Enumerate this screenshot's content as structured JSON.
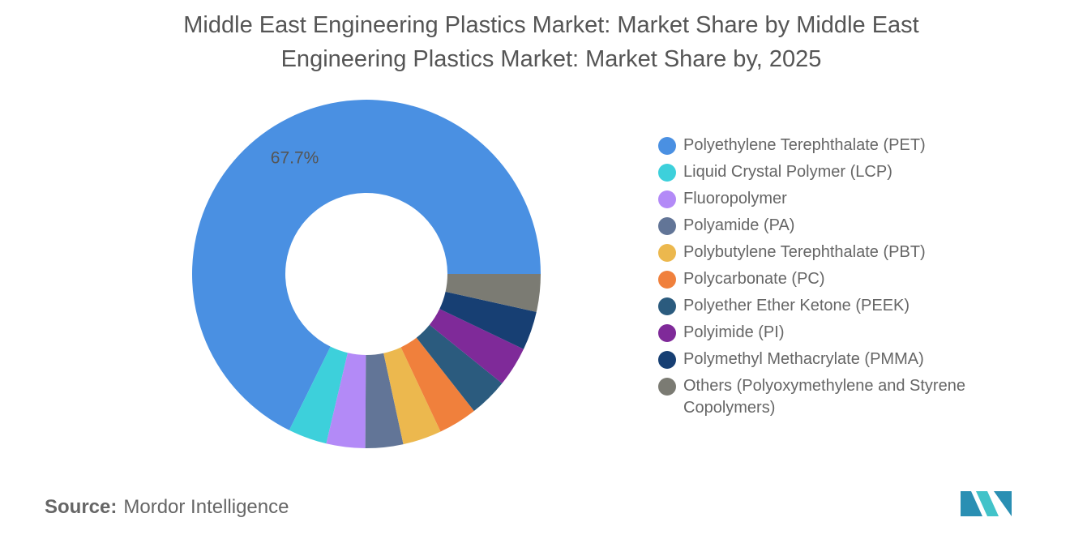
{
  "chart_data": {
    "type": "donut",
    "title": "Middle East Engineering Plastics Market: Market Share by Middle East Engineering Plastics Market: Market Share by, 2025",
    "categories": [
      "Polyethylene Terephthalate (PET)",
      "Liquid Crystal Polymer (LCP)",
      "Fluoropolymer",
      "Polyamide (PA)",
      "Polybutylene Terephthalate (PBT)",
      "Polycarbonate (PC)",
      "Polyether Ether Ketone (PEEK)",
      "Polyimide (PI)",
      "Polymethyl Methacrylate (PMMA)",
      "Others (Polyoxymethylene and Styrene Copolymers)"
    ],
    "values": [
      67.7,
      3.6,
      3.6,
      3.5,
      3.6,
      3.6,
      3.6,
      3.7,
      3.6,
      3.5
    ],
    "value_labels": [
      "67.7%",
      null,
      null,
      null,
      null,
      null,
      null,
      null,
      null,
      null
    ],
    "colors": [
      "#4a90e2",
      "#3dd0db",
      "#b38af7",
      "#627597",
      "#ecb84e",
      "#f0803c",
      "#2b5b7e",
      "#7f2a99",
      "#173f73",
      "#7b7b73"
    ],
    "source_label": "Source:",
    "source": "Mordor Intelligence"
  }
}
